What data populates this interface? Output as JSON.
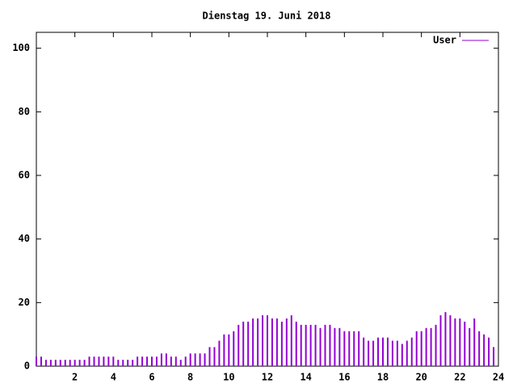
{
  "chart_data": {
    "type": "impulse",
    "title": "Dienstag 19. Juni 2018",
    "x": [
      0,
      0.25,
      0.5,
      0.75,
      1,
      1.25,
      1.5,
      1.75,
      2,
      2.25,
      2.5,
      2.75,
      3,
      3.25,
      3.5,
      3.75,
      4,
      4.25,
      4.5,
      4.75,
      5,
      5.25,
      5.5,
      5.75,
      6,
      6.25,
      6.5,
      6.75,
      7,
      7.25,
      7.5,
      7.75,
      8,
      8.25,
      8.5,
      8.75,
      9,
      9.25,
      9.5,
      9.75,
      10,
      10.25,
      10.5,
      10.75,
      11,
      11.25,
      11.5,
      11.75,
      12,
      12.25,
      12.5,
      12.75,
      13,
      13.25,
      13.5,
      13.75,
      14,
      14.25,
      14.5,
      14.75,
      15,
      15.25,
      15.5,
      15.75,
      16,
      16.25,
      16.5,
      16.75,
      17,
      17.25,
      17.5,
      17.75,
      18,
      18.25,
      18.5,
      18.75,
      19,
      19.25,
      19.5,
      19.75,
      20,
      20.25,
      20.5,
      20.75,
      21,
      21.25,
      21.5,
      21.75,
      22,
      22.25,
      22.5,
      22.75,
      23,
      23.25,
      23.5,
      23.75
    ],
    "series": [
      {
        "name": "User",
        "color": "#9400d3",
        "values": [
          3,
          3,
          2,
          2,
          2,
          2,
          2,
          2,
          2,
          2,
          2,
          3,
          3,
          3,
          3,
          3,
          3,
          2,
          2,
          2,
          2,
          3,
          3,
          3,
          3,
          3,
          4,
          4,
          3,
          3,
          2,
          3,
          4,
          4,
          4,
          4,
          6,
          6,
          8,
          10,
          10,
          11,
          13,
          14,
          14,
          15,
          15,
          16,
          16,
          15,
          15,
          14,
          15,
          16,
          14,
          13,
          13,
          13,
          13,
          12,
          13,
          13,
          12,
          12,
          11,
          11,
          11,
          11,
          9,
          8,
          8,
          9,
          9,
          9,
          8,
          8,
          7,
          8,
          9,
          11,
          11,
          12,
          12,
          13,
          16,
          17,
          16,
          15,
          15,
          14,
          12,
          15,
          11,
          10,
          9,
          6
        ]
      }
    ],
    "xlim": [
      0,
      24
    ],
    "xticks": [
      2,
      4,
      6,
      8,
      10,
      12,
      14,
      16,
      18,
      20,
      22,
      24
    ],
    "ylim": [
      0,
      105
    ],
    "yticks": [
      0,
      20,
      40,
      60,
      80,
      100
    ],
    "legend": "upper right"
  }
}
